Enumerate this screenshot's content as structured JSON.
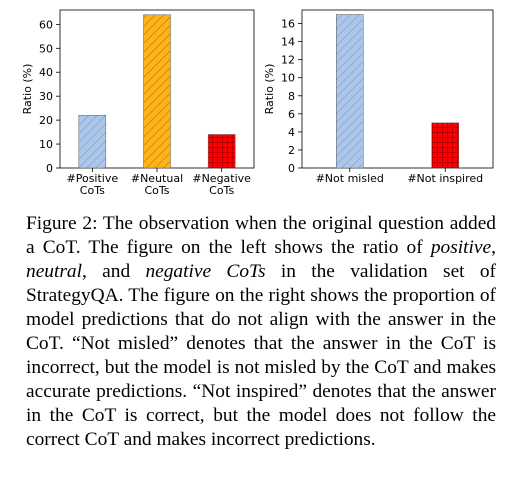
{
  "chart_data": [
    {
      "type": "bar",
      "categories": [
        "#Positive\nCoTs",
        "#Neutual\nCoTs",
        "#Negative\nCoTs"
      ],
      "values": [
        22,
        64,
        14
      ],
      "colors": [
        "#aec7e8",
        "#ffb31a",
        "#ff0000"
      ],
      "hatch": [
        "////",
        "////",
        "+++"
      ],
      "ylabel": "Ratio (%)",
      "ylim": [
        0,
        66
      ],
      "yticks": [
        0,
        10,
        20,
        30,
        40,
        50,
        60
      ],
      "grid": false
    },
    {
      "type": "bar",
      "categories": [
        "#Not misled",
        "#Not inspired"
      ],
      "values": [
        17,
        5
      ],
      "colors": [
        "#aec7e8",
        "#ff0000"
      ],
      "hatch": [
        "////",
        "+++"
      ],
      "ylabel": "Ratio (%)",
      "ylim": [
        0,
        17.5
      ],
      "yticks": [
        0,
        2,
        4,
        6,
        8,
        10,
        12,
        14,
        16
      ],
      "grid": false
    }
  ],
  "caption": {
    "lead": "Figure 2: The observation when the original question added a CoT. The figure on the left shows the ratio of ",
    "term1": "positive",
    "sep1": ", ",
    "term2": "neutral",
    "sep2": ", and ",
    "term3": "negative CoTs",
    "tail": " in the validation set of StrategyQA. The figure on the right shows the proportion of model predictions that do not align with the answer in the CoT. “Not misled” denotes that the answer in the CoT is incorrect, but the model is not misled by the CoT and makes accurate predictions. “Not inspired” denotes that the answer in the CoT is correct, but the model does not follow the correct CoT and makes incorrect predictions."
  }
}
